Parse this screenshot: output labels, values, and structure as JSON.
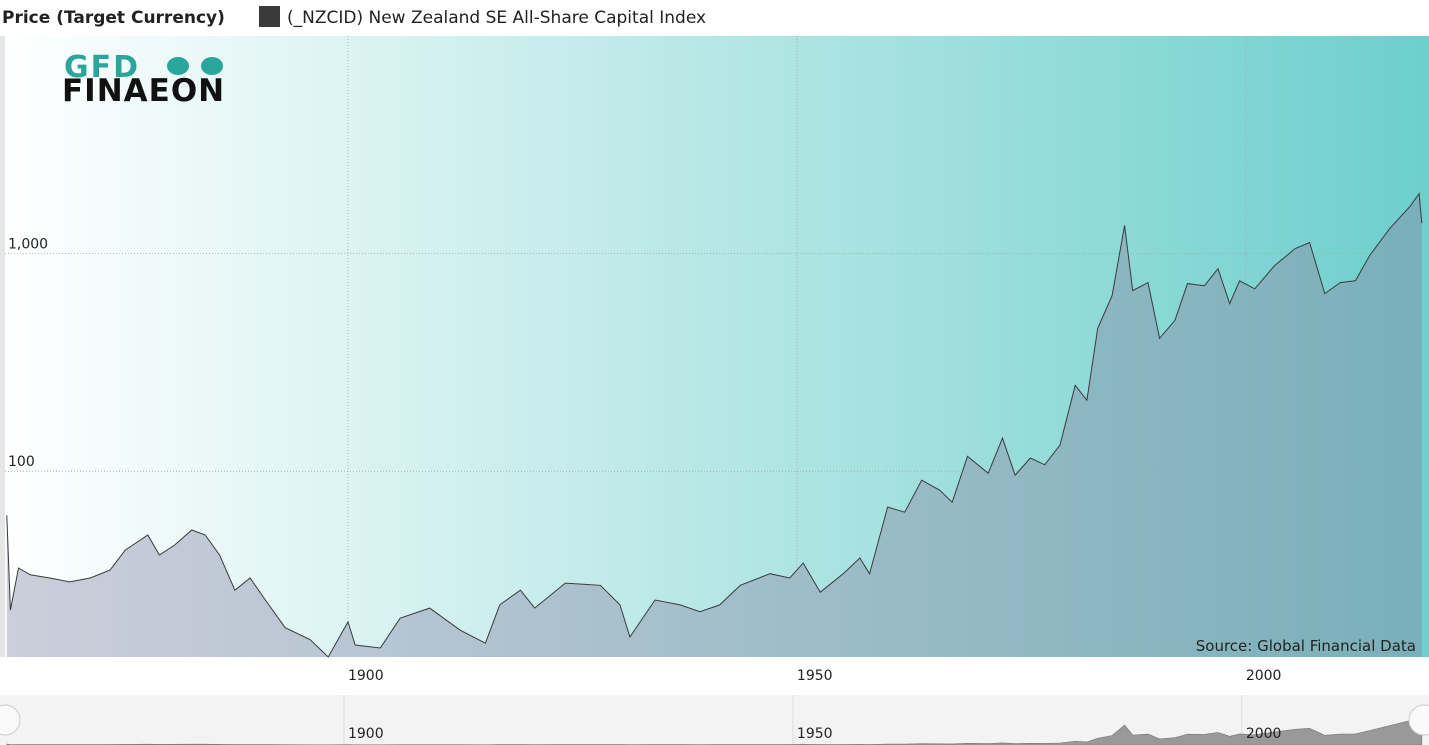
{
  "chart_data": {
    "type": "area",
    "title": "Price (Target Currency)",
    "source": "Source: Global Financial Data",
    "log_scale": true,
    "grid": true,
    "x": [
      1862.0,
      1862.4,
      1863.3,
      1864.6,
      1866.8,
      1869.0,
      1871.3,
      1873.5,
      1875.2,
      1877.7,
      1879.0,
      1880.7,
      1882.6,
      1884.1,
      1885.7,
      1887.4,
      1889.1,
      1890.8,
      1893.0,
      1895.8,
      1897.8,
      1900.0,
      1900.8,
      1903.6,
      1905.8,
      1909.1,
      1912.5,
      1915.3,
      1916.9,
      1919.2,
      1920.8,
      1924.2,
      1928.1,
      1930.3,
      1931.4,
      1934.2,
      1937.0,
      1939.2,
      1941.4,
      1943.7,
      1947.0,
      1949.2,
      1950.7,
      1952.6,
      1955.3,
      1957.0,
      1958.1,
      1960.1,
      1962.0,
      1963.9,
      1965.9,
      1967.3,
      1969.0,
      1971.3,
      1972.9,
      1974.3,
      1976.0,
      1977.6,
      1979.3,
      1981.0,
      1982.3,
      1983.5,
      1985.1,
      1986.5,
      1987.4,
      1989.1,
      1990.4,
      1992.1,
      1993.5,
      1995.4,
      1996.9,
      1998.2,
      1999.3,
      2001.0,
      2003.2,
      2005.5,
      2007.1,
      2008.8,
      2010.5,
      2012.2,
      2013.8,
      2016.0,
      2018.3,
      2019.3,
      2019.6
    ],
    "series": [
      {
        "name": "(_NZCID) New Zealand SE All-Share Capital Index",
        "color": "#3a3a3a",
        "values": [
          62.8,
          23,
          35.9,
          33.4,
          32.3,
          31,
          32.3,
          35.1,
          43.4,
          50.9,
          41.2,
          45.8,
          53.7,
          50.9,
          41.2,
          28.4,
          32.3,
          25.6,
          19.1,
          16.8,
          14.0,
          20.3,
          15.9,
          15.4,
          21.1,
          23.5,
          18.6,
          16.2,
          24.3,
          28.4,
          23.5,
          30.6,
          29.9,
          24.3,
          17.3,
          25.6,
          24.3,
          22.6,
          24.3,
          29.9,
          33.8,
          32.3,
          37.8,
          27.8,
          34.2,
          39.9,
          33.8,
          68.4,
          64.8,
          90.9,
          81.8,
          72,
          117,
          97.9,
          142,
          95.9,
          115,
          107,
          132,
          248,
          212,
          453,
          641,
          1348,
          676,
          736,
          408,
          493,
          728,
          712,
          852,
          589,
          750,
          689,
          881,
          1055,
          1125,
          655,
          736,
          750,
          980,
          1300,
          1650,
          1886,
          1380
        ]
      }
    ],
    "xlim": [
      1861.8,
      2020.4
    ],
    "xticks": [
      1900,
      1950,
      2000
    ],
    "ylim": [
      14,
      10000
    ],
    "yticks": [
      100,
      {
        "value": 1000,
        "label": "1,000"
      }
    ]
  },
  "logo": {
    "top": "GFD",
    "bottom": "FINAEON"
  }
}
